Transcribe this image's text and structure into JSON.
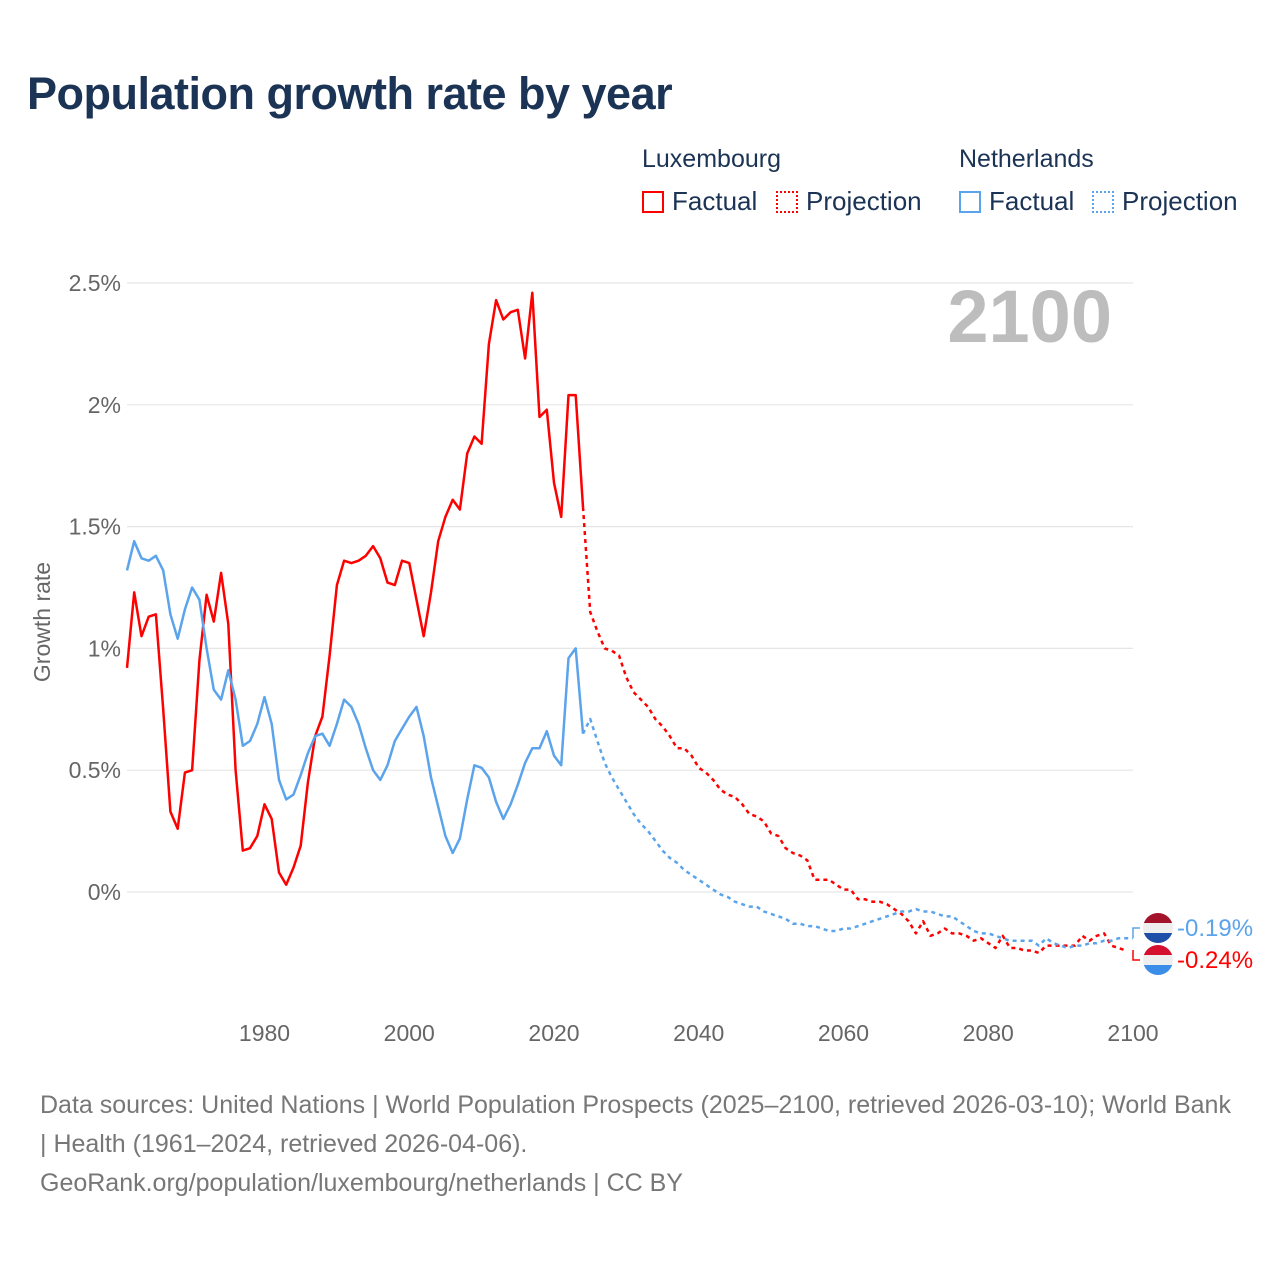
{
  "title": "Population growth rate by year",
  "legend": {
    "groups": [
      {
        "name": "Luxembourg",
        "factual": "Factual",
        "projection": "Projection",
        "color": "#ff0000"
      },
      {
        "name": "Netherlands",
        "factual": "Factual",
        "projection": "Projection",
        "color": "#5ba4ec"
      }
    ]
  },
  "year_label": "2100",
  "end_labels": {
    "netherlands": "-0.19%",
    "luxembourg": "-0.24%"
  },
  "footer": {
    "sources": "Data sources: United Nations | World Population Prospects (2025–2100, retrieved 2026-03-10); World Bank | Health (1961–2024, retrieved 2026-04-06).",
    "credit": "GeoRank.org/population/luxembourg/netherlands | CC BY"
  },
  "chart_data": {
    "type": "line",
    "title": "Population growth rate by year",
    "xlabel": "",
    "ylabel": "Growth rate",
    "xlim": [
      1961,
      2100
    ],
    "ylim": [
      -0.3,
      2.5
    ],
    "x_ticks": [
      1980,
      2000,
      2020,
      2040,
      2060,
      2080,
      2100
    ],
    "x_tick_labels": [
      "1980",
      "2000",
      "2020",
      "2040",
      "2060",
      "2080",
      "2100"
    ],
    "y_ticks": [
      0,
      0.5,
      1,
      1.5,
      2,
      2.5
    ],
    "y_tick_labels": [
      "0%",
      "0.5%",
      "1%",
      "1.5%",
      "2%",
      "2.5%"
    ],
    "grid": true,
    "legend_position": "top-right",
    "series": [
      {
        "name": "Luxembourg Factual",
        "color": "#ff0000",
        "style": "solid",
        "x_start": 1961,
        "values": [
          0.92,
          1.23,
          1.05,
          1.13,
          1.14,
          0.75,
          0.33,
          0.26,
          0.49,
          0.5,
          0.95,
          1.22,
          1.11,
          1.31,
          1.1,
          0.5,
          0.17,
          0.18,
          0.23,
          0.36,
          0.3,
          0.08,
          0.03,
          0.1,
          0.19,
          0.45,
          0.64,
          0.72,
          0.97,
          1.26,
          1.36,
          1.35,
          1.36,
          1.38,
          1.42,
          1.37,
          1.27,
          1.26,
          1.36,
          1.35,
          1.2,
          1.05,
          1.23,
          1.44,
          1.54,
          1.61,
          1.57,
          1.8,
          1.87,
          1.84,
          2.25,
          2.43,
          2.35,
          2.38,
          2.39,
          2.19,
          2.46,
          1.95,
          1.98,
          1.68,
          1.54,
          2.04,
          2.04,
          1.58
        ]
      },
      {
        "name": "Luxembourg Projection",
        "color": "#ff0000",
        "style": "dotted",
        "x_start": 2024,
        "values": [
          1.58,
          1.15,
          1.07,
          1.0,
          0.99,
          0.97,
          0.88,
          0.82,
          0.79,
          0.76,
          0.71,
          0.68,
          0.64,
          0.59,
          0.59,
          0.56,
          0.51,
          0.49,
          0.46,
          0.42,
          0.4,
          0.39,
          0.36,
          0.32,
          0.31,
          0.29,
          0.24,
          0.23,
          0.18,
          0.16,
          0.15,
          0.13,
          0.05,
          0.05,
          0.05,
          0.03,
          0.01,
          0.01,
          -0.03,
          -0.03,
          -0.04,
          -0.04,
          -0.05,
          -0.07,
          -0.09,
          -0.12,
          -0.17,
          -0.12,
          -0.18,
          -0.17,
          -0.15,
          -0.17,
          -0.17,
          -0.18,
          -0.2,
          -0.19,
          -0.21,
          -0.23,
          -0.18,
          -0.23,
          -0.23,
          -0.24,
          -0.24,
          -0.25,
          -0.22,
          -0.22,
          -0.22,
          -0.22,
          -0.22,
          -0.18,
          -0.2,
          -0.18,
          -0.17,
          -0.22,
          -0.23,
          -0.24
        ]
      },
      {
        "name": "Netherlands Factual",
        "color": "#5ba4ec",
        "style": "solid",
        "x_start": 1961,
        "values": [
          1.32,
          1.44,
          1.37,
          1.36,
          1.38,
          1.32,
          1.14,
          1.04,
          1.16,
          1.25,
          1.2,
          1.0,
          0.83,
          0.79,
          0.91,
          0.79,
          0.6,
          0.62,
          0.69,
          0.8,
          0.69,
          0.46,
          0.38,
          0.4,
          0.48,
          0.57,
          0.64,
          0.65,
          0.6,
          0.69,
          0.79,
          0.76,
          0.69,
          0.59,
          0.5,
          0.46,
          0.52,
          0.62,
          0.67,
          0.72,
          0.76,
          0.64,
          0.47,
          0.35,
          0.23,
          0.16,
          0.22,
          0.38,
          0.52,
          0.51,
          0.47,
          0.37,
          0.3,
          0.36,
          0.44,
          0.53,
          0.59,
          0.59,
          0.66,
          0.56,
          0.52,
          0.96,
          1.0,
          0.65
        ]
      },
      {
        "name": "Netherlands Projection",
        "color": "#5ba4ec",
        "style": "dotted",
        "x_start": 2024,
        "values": [
          0.65,
          0.71,
          0.62,
          0.53,
          0.47,
          0.42,
          0.37,
          0.32,
          0.28,
          0.25,
          0.21,
          0.17,
          0.14,
          0.12,
          0.09,
          0.07,
          0.05,
          0.03,
          0.01,
          -0.01,
          -0.02,
          -0.04,
          -0.05,
          -0.06,
          -0.06,
          -0.08,
          -0.09,
          -0.1,
          -0.11,
          -0.13,
          -0.13,
          -0.14,
          -0.14,
          -0.15,
          -0.16,
          -0.16,
          -0.15,
          -0.15,
          -0.14,
          -0.13,
          -0.12,
          -0.11,
          -0.1,
          -0.09,
          -0.08,
          -0.08,
          -0.07,
          -0.08,
          -0.08,
          -0.09,
          -0.1,
          -0.1,
          -0.12,
          -0.14,
          -0.16,
          -0.17,
          -0.17,
          -0.18,
          -0.19,
          -0.2,
          -0.2,
          -0.2,
          -0.2,
          -0.22,
          -0.19,
          -0.21,
          -0.22,
          -0.23,
          -0.22,
          -0.22,
          -0.21,
          -0.21,
          -0.2,
          -0.2,
          -0.19,
          -0.19,
          -0.19
        ]
      }
    ]
  }
}
